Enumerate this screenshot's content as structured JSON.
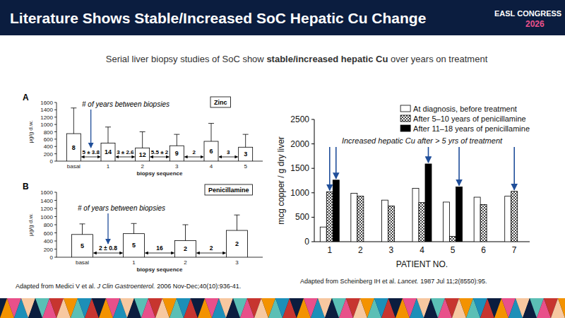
{
  "header": {
    "title": "Literature Shows Stable/Increased SoC Hepatic Cu Change",
    "logo": "EASL CONGRESS",
    "year": "2026"
  },
  "subtitle": [
    {
      "text": "Serial liver biopsy studies of SoC show",
      "bold": false
    },
    {
      "text": "stable/increased hepatic Cu",
      "bold": true
    },
    {
      "text": "over years on treatment",
      "bold": false
    }
  ],
  "chart_data": [
    {
      "type": "bar",
      "panel": "A",
      "title": "Zinc",
      "categories": [
        "basal",
        "1",
        "2",
        "3",
        "4",
        "5"
      ],
      "values": [
        750,
        490,
        360,
        420,
        540,
        380
      ],
      "errors": [
        700,
        440,
        440,
        310,
        490,
        350
      ],
      "counts": [
        8,
        14,
        12,
        9,
        6,
        3
      ],
      "intervals": [
        "5 ± 3.8",
        "3 ± 2.6",
        "5.5 ± 2",
        "2",
        "3"
      ],
      "annotation": "# of years between biopsies",
      "x_label": "biopsy sequence",
      "y_label": "μg/g d.w.",
      "color": "#ffffff",
      "ylim": [
        0,
        1600
      ],
      "yticks": [
        0,
        200,
        400,
        600,
        800,
        1000,
        1200,
        1400,
        1600
      ],
      "grid": false
    },
    {
      "type": "bar",
      "panel": "B",
      "title": "Penicillamine",
      "categories": [
        "basal",
        "1",
        "2",
        "3"
      ],
      "values": [
        560,
        580,
        410,
        660
      ],
      "errors": [
        260,
        250,
        390,
        380
      ],
      "counts": [
        5,
        5,
        2,
        2
      ],
      "intervals": [
        "2 ± 0.8",
        "16",
        "2"
      ],
      "annotation": "# of years between biopsies",
      "x_label": "biopsy sequence",
      "y_label": "μg/g d.w.",
      "color": "#ffffff",
      "ylim": [
        0,
        1600
      ],
      "yticks": [
        0,
        200,
        400,
        600,
        800,
        1000,
        1200,
        1400,
        1600
      ],
      "grid": false
    },
    {
      "type": "bar",
      "categories": [
        "1",
        "2",
        "3",
        "4",
        "5",
        "6",
        "7"
      ],
      "series": [
        {
          "name": "At diagnosis, before treatment",
          "color": "#ffffff",
          "values": [
            300,
            990,
            850,
            1090,
            810,
            910,
            930
          ]
        },
        {
          "name": "After 5–10 years of penicillamine",
          "color": "#333333",
          "marker": "crosshatch",
          "values": [
            1020,
            930,
            730,
            800,
            110,
            760,
            1030
          ]
        },
        {
          "name": "After 11–18 years of penicillamine",
          "color": "#000000",
          "values": [
            1260,
            null,
            null,
            1590,
            1120,
            null,
            null
          ]
        }
      ],
      "annotation": "Increased hepatic Cu after > 5 yrs of treatment",
      "x_label": "PATIENT NO.",
      "y_label": "mcg copper / g dry liver",
      "ylim": [
        0,
        2500
      ],
      "yticks": [
        0,
        500,
        1000,
        1500,
        2000,
        2500
      ],
      "legend": "upper right",
      "grid": false
    }
  ],
  "captions": [
    [
      {
        "text": "Adapted from Medici V et al.",
        "italic": false
      },
      {
        "text": "J Clin Gastroenterol.",
        "italic": true
      },
      {
        "text": "2006 Nov-Dec;40(10):936-41.",
        "italic": false
      }
    ],
    [
      {
        "text": "Adapted from Scheinberg IH et al.",
        "italic": false
      },
      {
        "text": "Lancet.",
        "italic": true
      },
      {
        "text": "1987 Jul 11;2(8550):95.",
        "italic": false
      }
    ]
  ]
}
